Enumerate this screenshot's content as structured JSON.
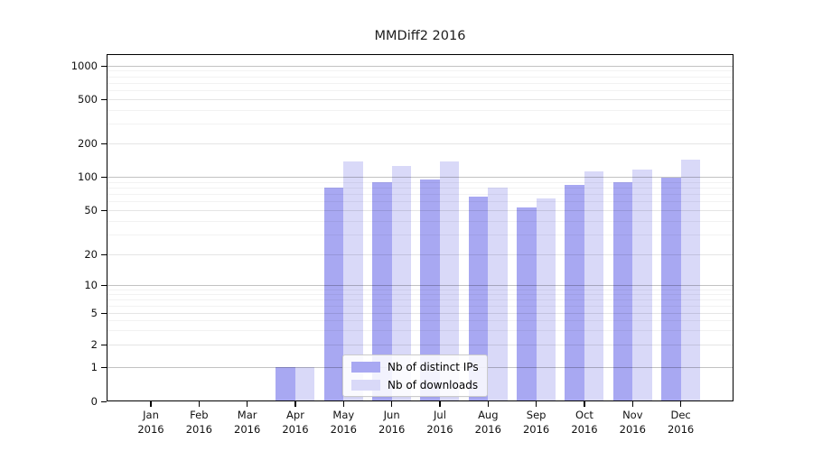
{
  "chart_data": {
    "type": "bar",
    "title": "MMDiff2 2016",
    "year": "2016",
    "months": [
      "Jan",
      "Feb",
      "Mar",
      "Apr",
      "May",
      "Jun",
      "Jul",
      "Aug",
      "Sep",
      "Oct",
      "Nov",
      "Dec"
    ],
    "yticks": [
      0,
      1,
      2,
      5,
      10,
      20,
      50,
      100,
      200,
      500,
      1000
    ],
    "ylim": [
      0,
      1283
    ],
    "yscale": "symlog",
    "grid": true,
    "legend_position": "lower center",
    "series": [
      {
        "name": "Nb of distinct IPs",
        "color": "#a8a8f2",
        "values": [
          0,
          0,
          0,
          1,
          80,
          91,
          95,
          67,
          53,
          85,
          90,
          100
        ]
      },
      {
        "name": "Nb of downloads",
        "color": "#d9d9f8",
        "values": [
          0,
          0,
          0,
          1,
          140,
          127,
          138,
          81,
          64,
          113,
          117,
          143
        ]
      }
    ]
  }
}
